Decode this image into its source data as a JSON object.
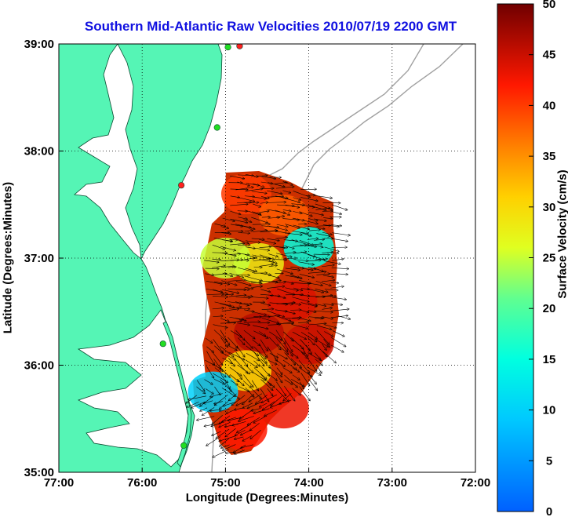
{
  "title": "Southern Mid-Atlantic Raw Velocities 2010/07/19 2200 GMT",
  "xlabel": "Longitude (Degrees:Minutes)",
  "ylabel": "Latitude (Degrees:Minutes)",
  "colorbar_label": "Surface Velocity (cm/s)",
  "x_ticks": [
    "77:00",
    "76:00",
    "75:00",
    "74:00",
    "73:00",
    "72:00"
  ],
  "y_ticks": [
    "39:00",
    "38:00",
    "37:00",
    "36:00",
    "35:00"
  ],
  "colorbar_ticks": [
    "50",
    "45",
    "40",
    "35",
    "30",
    "25",
    "20",
    "15",
    "10",
    "5",
    "0"
  ],
  "colors": {
    "land": "#55f5b5",
    "ocean": "#ffffff",
    "title": "#1010e0",
    "station": "#22dd22",
    "station_alt": "#ff2020",
    "bathymetry": "#a0a0a0"
  },
  "chart_data": {
    "type": "heatmap",
    "subtype": "surface current velocity map with vectors",
    "x_range_deg_west": [
      77,
      72
    ],
    "y_range_deg_north": [
      35,
      39
    ],
    "colorbar_range_cms": [
      0,
      50
    ],
    "colormap": "jet",
    "grid": true,
    "stations": [
      {
        "lon": -74.83,
        "lat": 38.98,
        "color": "red"
      },
      {
        "lon": -74.97,
        "lat": 38.97,
        "color": "green"
      },
      {
        "lon": -75.1,
        "lat": 38.22,
        "color": "green"
      },
      {
        "lon": -75.53,
        "lat": 37.68,
        "color": "red"
      },
      {
        "lon": -75.75,
        "lat": 36.2,
        "color": "green"
      },
      {
        "lon": -75.5,
        "lat": 35.25,
        "color": "green"
      }
    ],
    "velocity_regions": [
      {
        "lon": -74.75,
        "lat": 37.6,
        "speed": 40
      },
      {
        "lon": -74.3,
        "lat": 37.4,
        "speed": 38
      },
      {
        "lon": -74.0,
        "lat": 37.1,
        "speed": 15
      },
      {
        "lon": -74.6,
        "lat": 36.95,
        "speed": 28
      },
      {
        "lon": -75.0,
        "lat": 37.0,
        "speed": 25
      },
      {
        "lon": -74.2,
        "lat": 36.6,
        "speed": 44
      },
      {
        "lon": -74.6,
        "lat": 36.3,
        "speed": 46
      },
      {
        "lon": -74.0,
        "lat": 36.2,
        "speed": 45
      },
      {
        "lon": -74.75,
        "lat": 35.95,
        "speed": 30
      },
      {
        "lon": -75.15,
        "lat": 35.75,
        "speed": 10
      },
      {
        "lon": -74.8,
        "lat": 35.4,
        "speed": 42
      },
      {
        "lon": -74.3,
        "lat": 35.6,
        "speed": 43
      }
    ]
  }
}
